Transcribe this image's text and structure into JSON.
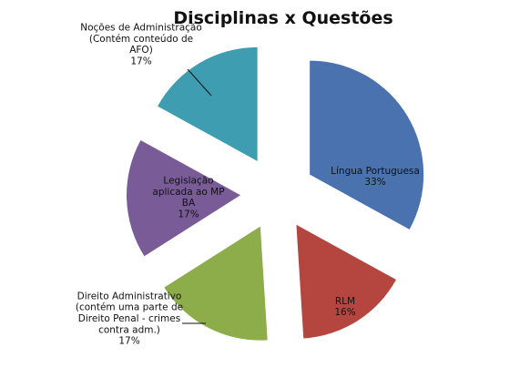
{
  "chart_data": {
    "type": "pie",
    "title": "Disciplinas x Questões",
    "exploded": true,
    "slices": [
      {
        "name": "Língua Portuguesa",
        "label_lines": [
          "Língua Portuguesa",
          "33%"
        ],
        "percent": 33,
        "color": "#4A72AF"
      },
      {
        "name": "RLM",
        "label_lines": [
          "RLM",
          "16%"
        ],
        "percent": 16,
        "color": "#B4463F"
      },
      {
        "name": "Direito Administrativo (contém uma parte de Direito Penal - crimes contra adm.)",
        "label_lines": [
          "Direito Administrativo",
          "(contém uma parte de",
          "Direito Penal - crimes",
          "contra adm.)",
          "17%"
        ],
        "percent": 17,
        "color": "#8DAD4A"
      },
      {
        "name": "Legislação aplicada ao MP BA",
        "label_lines": [
          "Legislação",
          "aplicada ao MP",
          "BA",
          "17%"
        ],
        "percent": 17,
        "color": "#795B98"
      },
      {
        "name": "Noções de Administração (Contém conteúdo de AFO)",
        "label_lines": [
          "Noções de Administração",
          "(Contém conteúdo de",
          "AFO)",
          "17%"
        ],
        "percent": 17,
        "color": "#3E9DB0"
      }
    ]
  }
}
